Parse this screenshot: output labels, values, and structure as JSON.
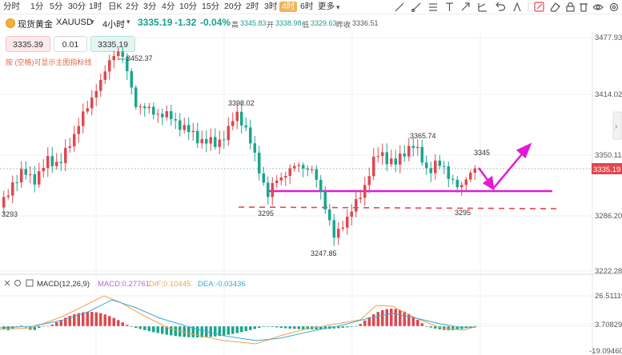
{
  "timeframes": [
    "分时",
    "1分",
    "5分",
    "30分",
    "1时",
    "日K",
    "2分",
    "3分",
    "4分",
    "10分",
    "15分",
    "20分",
    "2时",
    "3时",
    "4时",
    "6时",
    "更多"
  ],
  "active_timeframe": "4时",
  "symbol": {
    "name": "现货黄金",
    "code": "XAUUSD",
    "period": "4小时"
  },
  "quote": {
    "price": "3335.19",
    "change": "-1.32",
    "change_pct": "-0.04%",
    "high_label": "高",
    "high": "3345.83",
    "open_label": "开",
    "open": "3338.98",
    "low_label": "低",
    "low": "3329.63",
    "prev_label": "昨收",
    "prev": "3336.51"
  },
  "trade": {
    "sell": "3335.39",
    "qty": "0.01",
    "buy": "3335.19",
    "hint": "按 (空格)可显示主图指标线"
  },
  "tools": [
    "line-draw-icon",
    "trend-line-icon",
    "ray-icon",
    "arrow-tool-icon",
    "measure-icon",
    "text-tool-icon",
    "shape-icon",
    "rectangle-icon",
    "undo-icon",
    "fullscreen-icon",
    "eraser-icon",
    "lock-icon",
    "eye-icon",
    "settings-icon"
  ],
  "price_axis": {
    "ticks": [
      "3477.93",
      "3414.02",
      "3350.11",
      "3286.20",
      "3222.28"
    ],
    "current": "3335.19"
  },
  "annotations": {
    "a1": "3452.37",
    "a2": "3398.02",
    "a3": "3365.74",
    "a4": "3345",
    "a5": "3293",
    "a6": "3295",
    "a7": "3247.85",
    "a8": "3295"
  },
  "macd": {
    "label": "MACD(12,26,9)",
    "macd": "MACD:0.27761",
    "dif": "DIF:0.10445",
    "dea": "DEA:-0.03436",
    "axis": [
      "26.51119",
      "3.70829",
      "-19.09460"
    ]
  },
  "colors": {
    "up": "#e0484f",
    "down": "#1aa68f",
    "magenta": "#e21ad9",
    "dash": "#e0484f",
    "dif": "#f0a34a",
    "dea": "#3aa9d6"
  }
}
